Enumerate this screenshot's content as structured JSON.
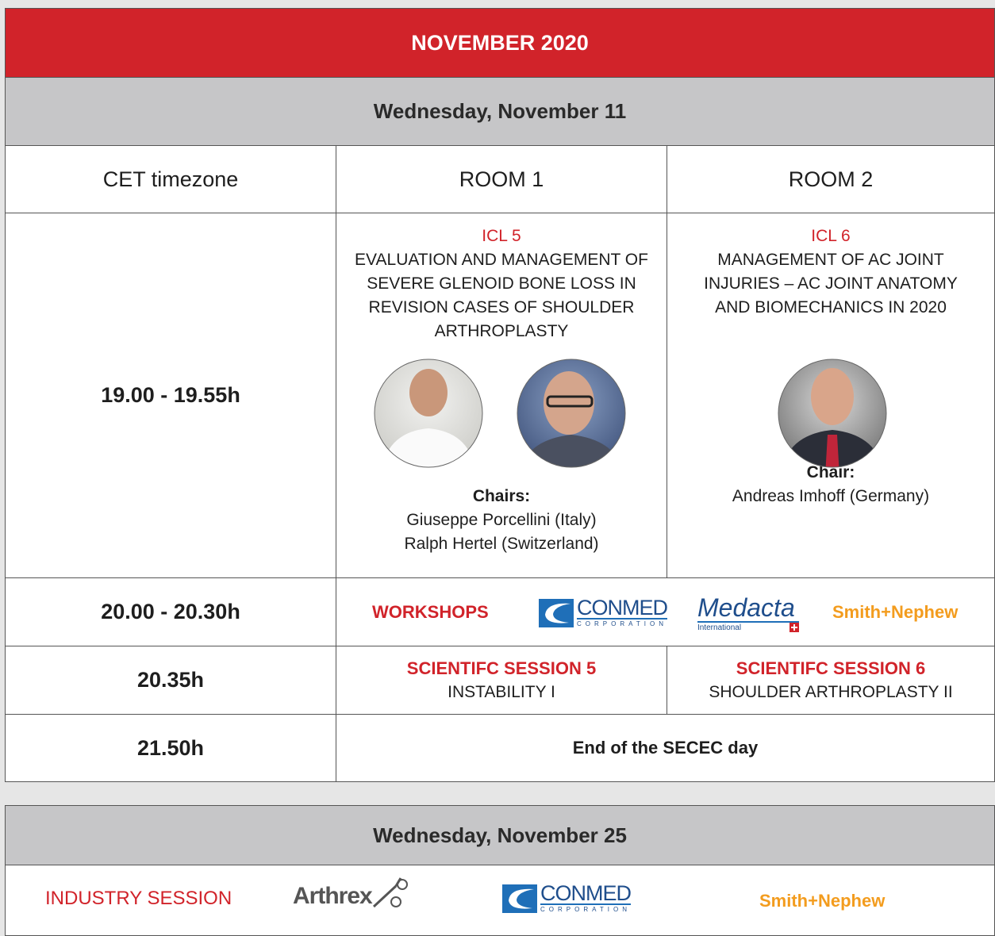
{
  "header": {
    "title": "NOVEMBER 2020"
  },
  "day1": {
    "date": "Wednesday, November 11",
    "columns": [
      "CET timezone",
      "ROOM 1",
      "ROOM 2"
    ],
    "icl": {
      "time": "19.00 - 19.55h",
      "room1": {
        "code": "ICL 5",
        "title": "EVALUATION AND MANAGEMENT OF SEVERE GLENOID BONE LOSS IN REVISION CASES OF SHOULDER ARTHROPLASTY",
        "chair_label": "Chairs:",
        "chairs": [
          "Giuseppe Porcellini (Italy)",
          "Ralph Hertel (Switzerland)"
        ]
      },
      "room2": {
        "code": "ICL 6",
        "title": "MANAGEMENT OF AC JOINT INJURIES – AC JOINT ANATOMY AND BIOMECHANICS IN 2020",
        "chair_label": "Chair:",
        "chairs": [
          "Andreas Imhoff (Germany)"
        ]
      }
    },
    "workshops": {
      "time": "20.00 - 20.30h",
      "label": "WORKSHOPS",
      "sponsors": [
        {
          "name": "CONMED",
          "sub": "CORPORATION"
        },
        {
          "name": "Medacta",
          "sub": "International"
        },
        {
          "name": "Smith+Nephew"
        }
      ]
    },
    "scientific": {
      "time": "20.35h",
      "room1": {
        "title": "SCIENTIFC SESSION 5",
        "topic": "INSTABILITY I"
      },
      "room2": {
        "title": "SCIENTIFC SESSION 6",
        "topic": "SHOULDER ARTHROPLASTY II"
      }
    },
    "end": {
      "time": "21.50h",
      "label": "End of the SECEC day"
    }
  },
  "day2": {
    "date": "Wednesday, November 25",
    "label": "INDUSTRY SESSION",
    "sponsors": [
      {
        "name": "Arthrex"
      },
      {
        "name": "CONMED",
        "sub": "CORPORATION"
      },
      {
        "name": "Smith+Nephew"
      }
    ]
  }
}
